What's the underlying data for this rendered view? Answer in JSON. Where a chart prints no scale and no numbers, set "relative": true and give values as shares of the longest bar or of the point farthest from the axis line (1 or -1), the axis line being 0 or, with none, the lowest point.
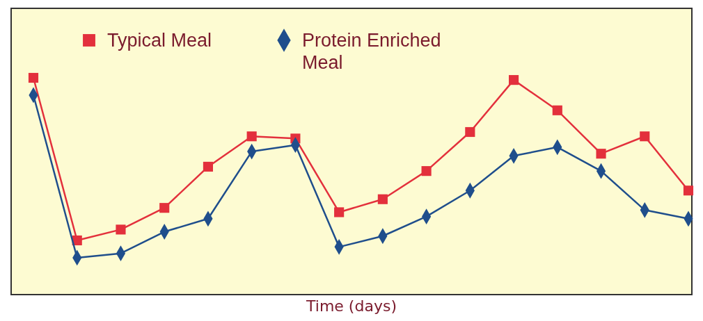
{
  "chart_data": {
    "type": "line",
    "relative": true,
    "xlabel": "Time (days)",
    "legend": "top left",
    "categories": [
      null,
      null,
      null,
      null,
      null,
      null,
      null,
      null,
      null,
      null,
      null,
      null,
      null,
      null,
      null,
      null
    ],
    "series": [
      {
        "name": "Typical Meal",
        "color": "#e3303c",
        "marker": "square",
        "values": [
          1.0,
          0.25,
          0.3,
          0.4,
          0.59,
          0.73,
          0.72,
          0.38,
          0.44,
          0.57,
          0.75,
          0.99,
          0.85,
          0.65,
          0.73,
          0.48
        ]
      },
      {
        "name": "Protein Enriched Meal",
        "color": "#1f4e8c",
        "marker": "diamond",
        "values": [
          0.92,
          0.17,
          0.19,
          0.29,
          0.35,
          0.66,
          0.69,
          0.22,
          0.27,
          0.36,
          0.48,
          0.64,
          0.68,
          0.57,
          0.39,
          0.35
        ]
      }
    ]
  }
}
